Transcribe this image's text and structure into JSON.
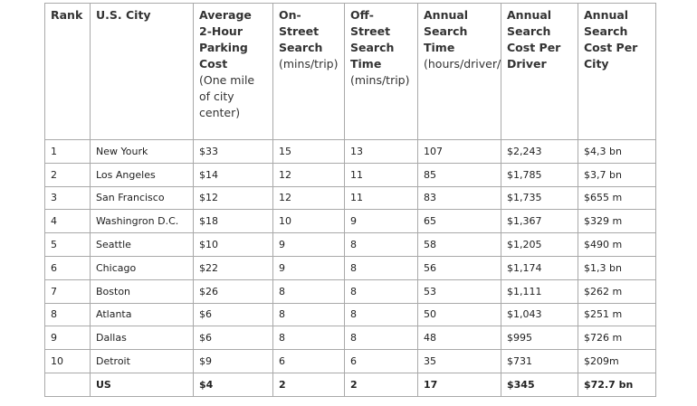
{
  "table": {
    "header": [
      {
        "title": "Rank"
      },
      {
        "title": "U.S. City"
      },
      {
        "title": "Average 2-Hour Parking Cost",
        "note": "(One mile of city center)"
      },
      {
        "title": "On-Street Search",
        "note": "(mins/trip)"
      },
      {
        "title": "Off-Street Search Time",
        "note": "(mins/trip)"
      },
      {
        "title": "Annual Search Time",
        "note": "(hours/driver/year)"
      },
      {
        "title": "Annual Search Cost Per Driver"
      },
      {
        "title": "Annual Search Cost Per City"
      }
    ],
    "rows": [
      [
        "1",
        "New Yourk",
        "$33",
        "15",
        "13",
        "107",
        "$2,243",
        "$4,3 bn"
      ],
      [
        "2",
        "Los Angeles",
        "$14",
        "12",
        "11",
        "85",
        "$1,785",
        "$3,7 bn"
      ],
      [
        "3",
        "San Francisco",
        "$12",
        "12",
        "11",
        "83",
        "$1,735",
        "$655 m"
      ],
      [
        "4",
        "Washingron D.C.",
        "$18",
        "10",
        "9",
        "65",
        "$1,367",
        "$329 m"
      ],
      [
        "5",
        "Seattle",
        "$10",
        "9",
        "8",
        "58",
        "$1,205",
        "$490 m"
      ],
      [
        "6",
        "Chicago",
        "$22",
        "9",
        "8",
        "56",
        "$1,174",
        "$1,3 bn"
      ],
      [
        "7",
        "Boston",
        "$26",
        "8",
        "8",
        "53",
        "$1,111",
        "$262 m"
      ],
      [
        "8",
        "Atlanta",
        "$6",
        "8",
        "8",
        "50",
        "$1,043",
        "$251 m"
      ],
      [
        "9",
        "Dallas",
        "$6",
        "8",
        "8",
        "48",
        "$995",
        "$726 m"
      ],
      [
        "10",
        "Detroit",
        "$9",
        "6",
        "6",
        "35",
        "$731",
        "$209m"
      ],
      [
        null,
        "US",
        "$4",
        "2",
        "2",
        "17",
        "$345",
        "$72.7 bn"
      ]
    ]
  }
}
